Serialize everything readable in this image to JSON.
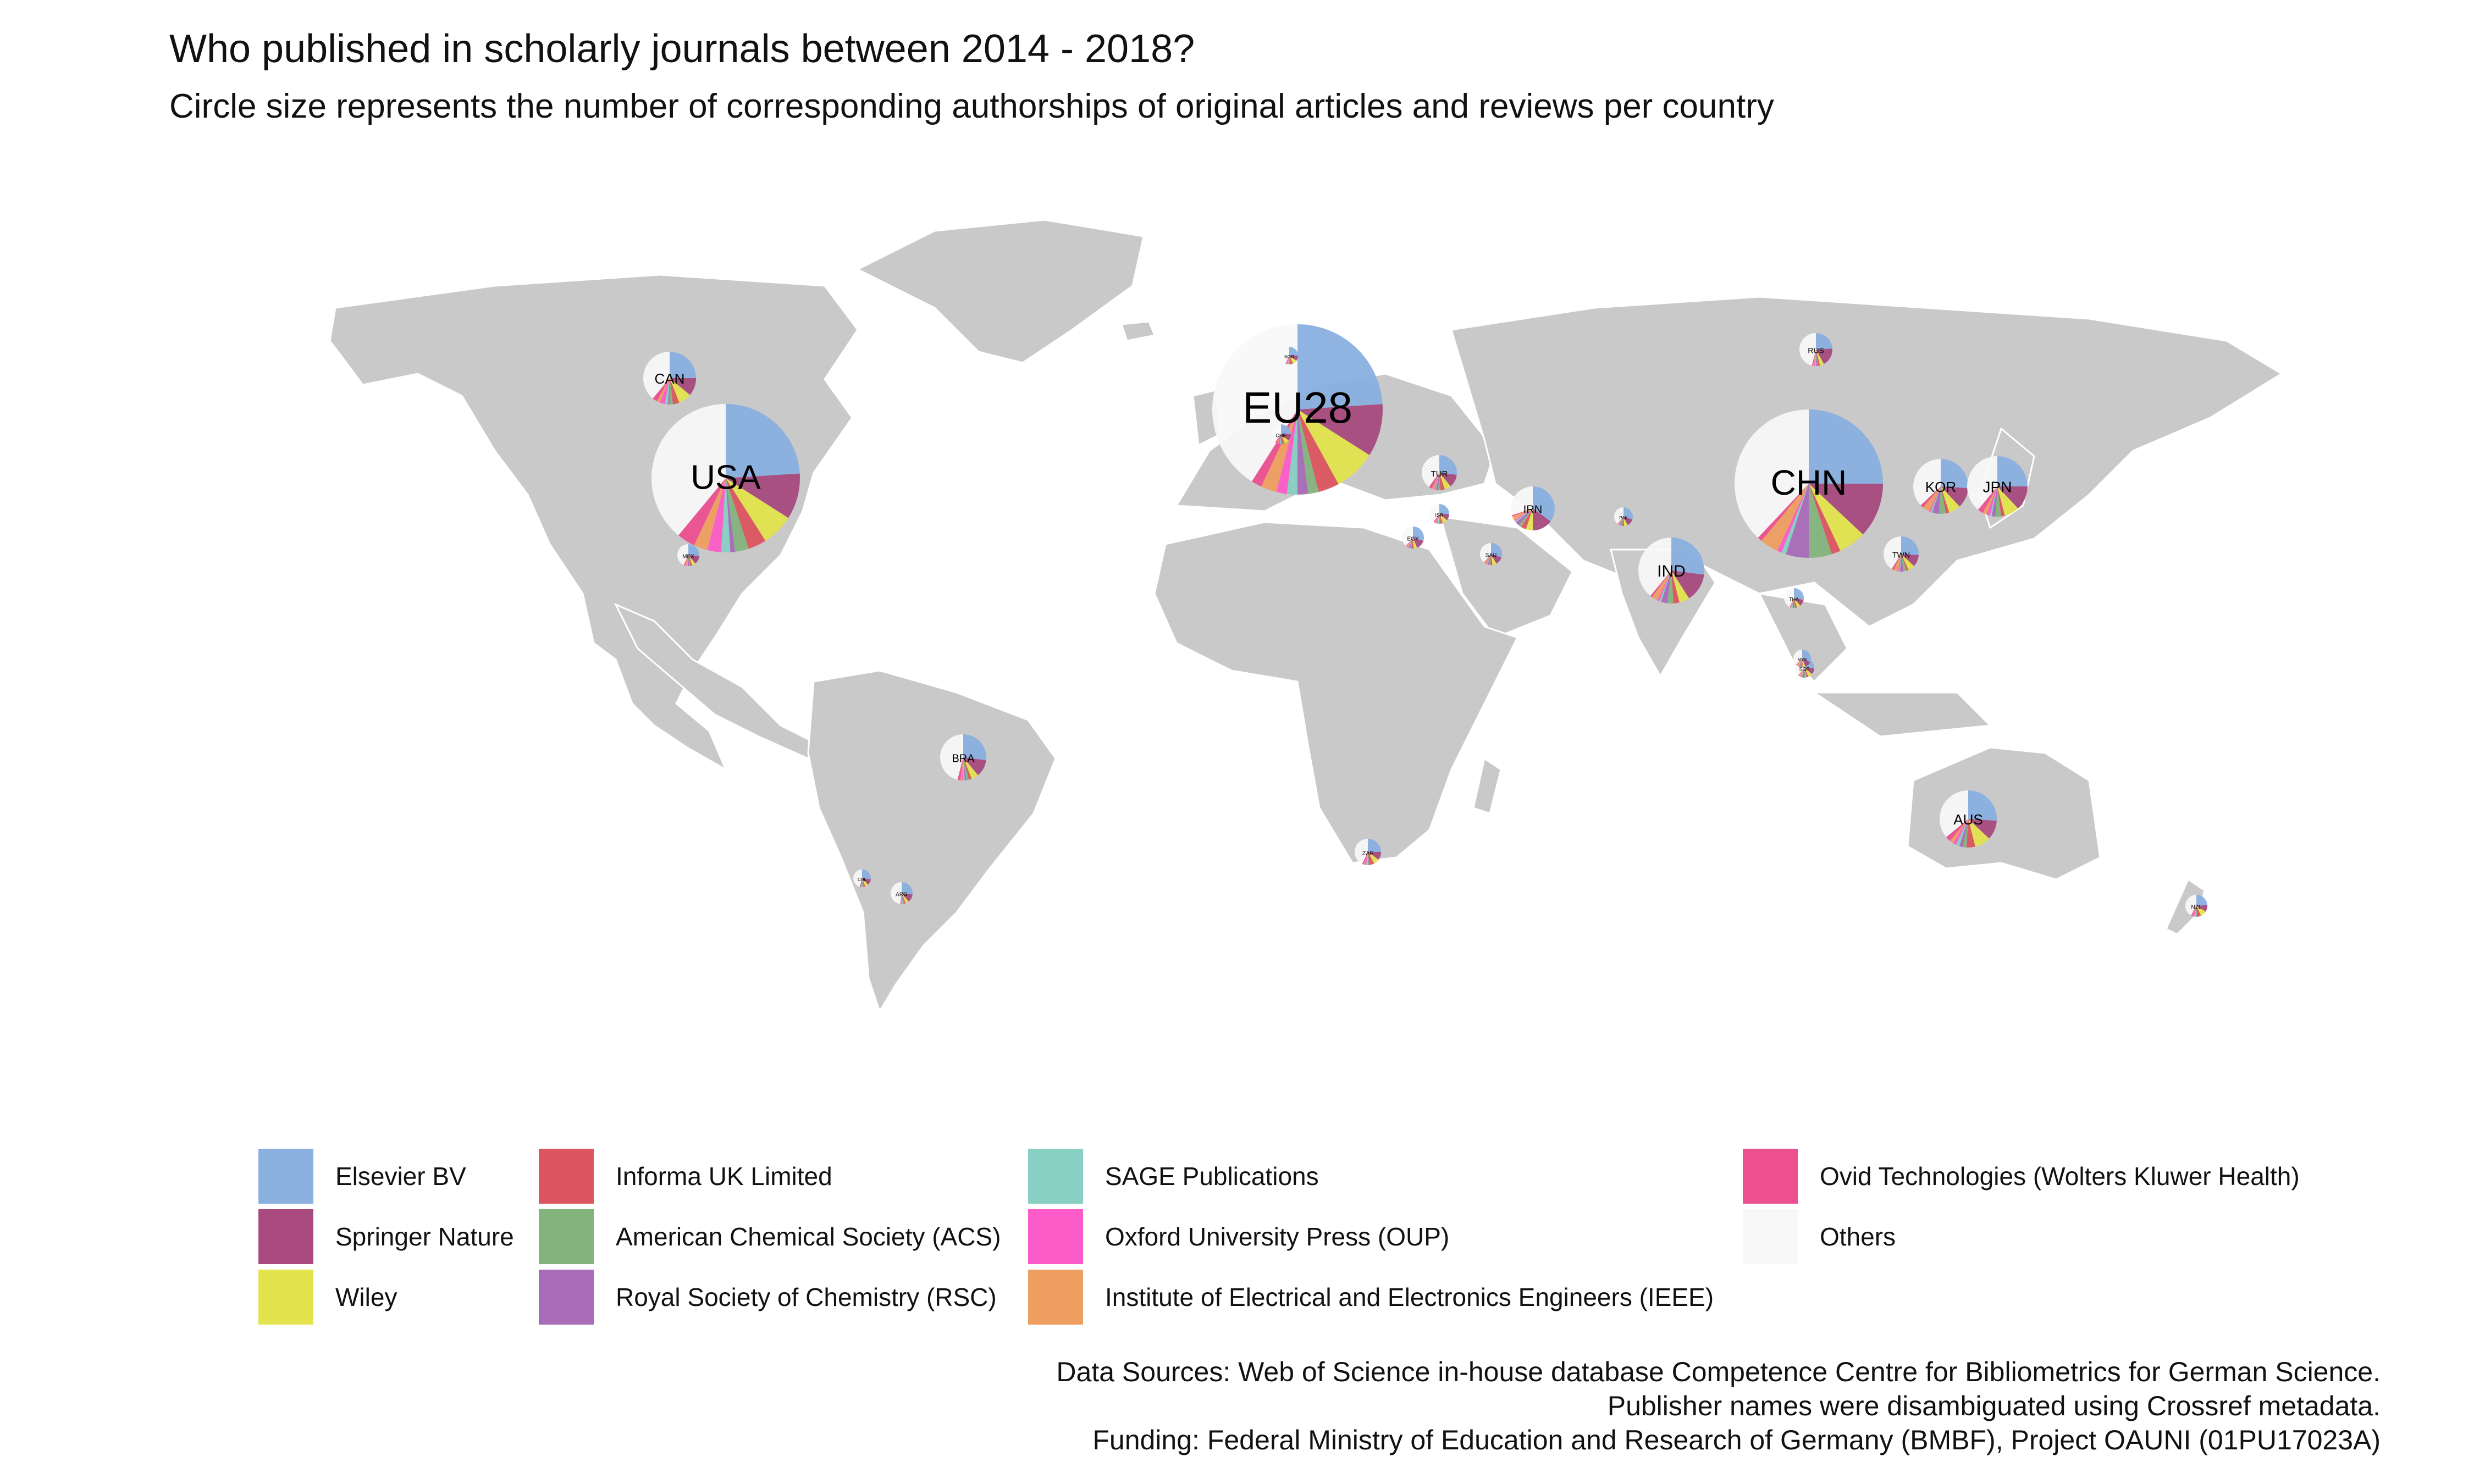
{
  "title": "Who published in scholarly journals between 2014 - 2018?",
  "subtitle": "Circle size represents the number of corresponding authorships of original articles and reviews per country",
  "legend": [
    {
      "name": "Elsevier BV",
      "color": "#8AB0E0"
    },
    {
      "name": "Springer Nature",
      "color": "#A84A7E"
    },
    {
      "name": "Wiley",
      "color": "#E3E34E"
    },
    {
      "name": "Informa UK Limited",
      "color": "#DC5560"
    },
    {
      "name": "American Chemical Society (ACS)",
      "color": "#84B47E"
    },
    {
      "name": "Royal Society of Chemistry (RSC)",
      "color": "#A86CB8"
    },
    {
      "name": "SAGE Publications",
      "color": "#88D0C4"
    },
    {
      "name": "Oxford University Press (OUP)",
      "color": "#FC5CC8"
    },
    {
      "name": "Institute of Electrical and Electronics Engineers (IEEE)",
      "color": "#EE9E60"
    },
    {
      "name": "Ovid Technologies (Wolters Kluwer Health)",
      "color": "#EC5090"
    },
    {
      "name": "Others",
      "color": "#F8F8F8"
    }
  ],
  "countries": [
    {
      "label": "USA",
      "shares": [
        0.24,
        0.1,
        0.07,
        0.04,
        0.03,
        0.01,
        0.02,
        0.03,
        0.03,
        0.04,
        0.39
      ]
    },
    {
      "label": "EU28",
      "shares": [
        0.24,
        0.1,
        0.08,
        0.04,
        0.02,
        0.02,
        0.02,
        0.02,
        0.03,
        0.02,
        0.41
      ]
    },
    {
      "label": "CHN",
      "shares": [
        0.25,
        0.12,
        0.06,
        0.02,
        0.05,
        0.05,
        0.01,
        0.01,
        0.04,
        0.01,
        0.38
      ]
    },
    {
      "label": "CAN",
      "shares": [
        0.25,
        0.11,
        0.08,
        0.04,
        0.02,
        0.01,
        0.02,
        0.03,
        0.02,
        0.03,
        0.39
      ]
    },
    {
      "label": "IND",
      "shares": [
        0.27,
        0.14,
        0.05,
        0.03,
        0.03,
        0.03,
        0.01,
        0.01,
        0.03,
        0.01,
        0.39
      ]
    },
    {
      "label": "KOR",
      "shares": [
        0.26,
        0.12,
        0.07,
        0.02,
        0.04,
        0.04,
        0.01,
        0.01,
        0.04,
        0.02,
        0.37
      ]
    },
    {
      "label": "JPN",
      "shares": [
        0.25,
        0.13,
        0.08,
        0.02,
        0.03,
        0.02,
        0.01,
        0.02,
        0.02,
        0.03,
        0.39
      ]
    },
    {
      "label": "BRA",
      "shares": [
        0.27,
        0.12,
        0.05,
        0.02,
        0.02,
        0.01,
        0.01,
        0.01,
        0.01,
        0.02,
        0.46
      ]
    },
    {
      "label": "AUS",
      "shares": [
        0.26,
        0.11,
        0.09,
        0.05,
        0.02,
        0.02,
        0.02,
        0.02,
        0.02,
        0.03,
        0.36
      ]
    },
    {
      "label": "IRN",
      "shares": [
        0.35,
        0.15,
        0.05,
        0.04,
        0.02,
        0.03,
        0.01,
        0.01,
        0.03,
        0.01,
        0.3
      ]
    },
    {
      "label": "TUR",
      "shares": [
        0.27,
        0.12,
        0.06,
        0.04,
        0.02,
        0.02,
        0.01,
        0.01,
        0.02,
        0.03,
        0.4
      ]
    },
    {
      "label": "RUS",
      "shares": [
        0.24,
        0.18,
        0.04,
        0.02,
        0.01,
        0.01,
        0.01,
        0.01,
        0.01,
        0.01,
        0.46
      ]
    },
    {
      "label": "TWN",
      "shares": [
        0.26,
        0.11,
        0.06,
        0.02,
        0.03,
        0.03,
        0.01,
        0.01,
        0.04,
        0.02,
        0.41
      ]
    },
    {
      "label": "MEX",
      "shares": [
        0.26,
        0.13,
        0.05,
        0.03,
        0.02,
        0.02,
        0.01,
        0.01,
        0.02,
        0.02,
        0.43
      ]
    },
    {
      "label": "NOR",
      "shares": [
        0.25,
        0.1,
        0.08,
        0.05,
        0.01,
        0.01,
        0.02,
        0.02,
        0.01,
        0.02,
        0.43
      ]
    },
    {
      "label": "ZAF",
      "shares": [
        0.25,
        0.1,
        0.07,
        0.06,
        0.01,
        0.01,
        0.02,
        0.02,
        0.01,
        0.02,
        0.43
      ]
    },
    {
      "label": "SAU",
      "shares": [
        0.3,
        0.12,
        0.06,
        0.03,
        0.02,
        0.02,
        0.01,
        0.01,
        0.03,
        0.01,
        0.39
      ]
    },
    {
      "label": "EGY",
      "shares": [
        0.3,
        0.14,
        0.05,
        0.03,
        0.02,
        0.02,
        0.01,
        0.01,
        0.02,
        0.01,
        0.39
      ]
    },
    {
      "label": "ISR",
      "shares": [
        0.25,
        0.11,
        0.08,
        0.04,
        0.02,
        0.01,
        0.02,
        0.02,
        0.02,
        0.03,
        0.4
      ]
    },
    {
      "label": "CHE",
      "shares": [
        0.25,
        0.11,
        0.08,
        0.03,
        0.02,
        0.01,
        0.02,
        0.03,
        0.02,
        0.03,
        0.4
      ]
    },
    {
      "label": "SGP",
      "shares": [
        0.26,
        0.1,
        0.07,
        0.03,
        0.04,
        0.04,
        0.01,
        0.01,
        0.04,
        0.01,
        0.39
      ]
    },
    {
      "label": "MYS",
      "shares": [
        0.32,
        0.12,
        0.05,
        0.03,
        0.02,
        0.02,
        0.01,
        0.01,
        0.04,
        0.01,
        0.37
      ]
    },
    {
      "label": "THA",
      "shares": [
        0.28,
        0.11,
        0.06,
        0.03,
        0.02,
        0.02,
        0.01,
        0.01,
        0.02,
        0.01,
        0.43
      ]
    },
    {
      "label": "NZL",
      "shares": [
        0.24,
        0.1,
        0.09,
        0.06,
        0.01,
        0.01,
        0.02,
        0.02,
        0.01,
        0.02,
        0.42
      ]
    },
    {
      "label": "CHL",
      "shares": [
        0.27,
        0.11,
        0.06,
        0.03,
        0.01,
        0.01,
        0.01,
        0.01,
        0.01,
        0.02,
        0.46
      ]
    },
    {
      "label": "ARG",
      "shares": [
        0.27,
        0.12,
        0.05,
        0.02,
        0.01,
        0.01,
        0.01,
        0.01,
        0.01,
        0.01,
        0.48
      ]
    },
    {
      "label": "PAK",
      "shares": [
        0.3,
        0.13,
        0.06,
        0.03,
        0.02,
        0.02,
        0.01,
        0.01,
        0.02,
        0.01,
        0.39
      ]
    }
  ],
  "sources": [
    "Data Sources:  Web of Science in-house database Competence Centre for Bibliometrics for German Science.",
    "Publisher names were disambiguated using Crossref metadata.",
    "Funding: Federal Ministry of Education and Research of Germany (BMBF), Project OAUNI (01PU17023A)"
  ]
}
